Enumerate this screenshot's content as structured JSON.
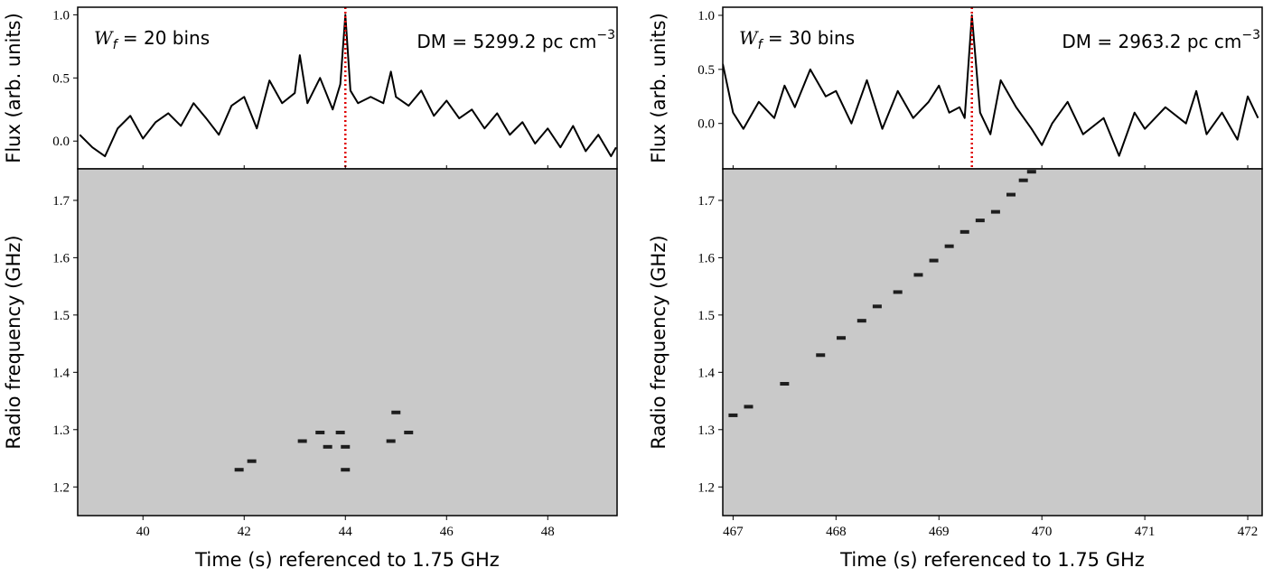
{
  "chart_data": [
    {
      "type": "line",
      "ylabel": "Flux (arb. units)",
      "color": "#000000",
      "x": [
        38.75,
        39.0,
        39.25,
        39.5,
        39.75,
        40.0,
        40.25,
        40.5,
        40.75,
        41.0,
        41.25,
        41.5,
        41.75,
        42.0,
        42.25,
        42.5,
        42.75,
        43.0,
        43.1,
        43.25,
        43.5,
        43.75,
        43.9,
        44.0,
        44.1,
        44.25,
        44.5,
        44.75,
        44.9,
        45.0,
        45.25,
        45.5,
        45.75,
        46.0,
        46.25,
        46.5,
        46.75,
        47.0,
        47.25,
        47.5,
        47.75,
        48.0,
        48.25,
        48.5,
        48.75,
        49.0,
        49.25,
        49.35
      ],
      "values": [
        0.05,
        -0.05,
        -0.12,
        0.1,
        0.2,
        0.02,
        0.15,
        0.22,
        0.12,
        0.3,
        0.18,
        0.05,
        0.28,
        0.35,
        0.1,
        0.48,
        0.3,
        0.38,
        0.68,
        0.3,
        0.5,
        0.25,
        0.45,
        1.0,
        0.4,
        0.3,
        0.35,
        0.3,
        0.55,
        0.35,
        0.28,
        0.4,
        0.2,
        0.32,
        0.18,
        0.25,
        0.1,
        0.22,
        0.05,
        0.15,
        -0.02,
        0.1,
        -0.05,
        0.12,
        -0.08,
        0.05,
        -0.12,
        -0.05
      ],
      "xlim": [
        38.71,
        49.37
      ],
      "ylim": [
        -0.22,
        1.06
      ],
      "yticks": [
        {
          "value": 0,
          "label": "0.0"
        },
        0.5,
        {
          "value": 1,
          "label": "1.0"
        }
      ],
      "vline": 44.0,
      "vline_color": "#e00000",
      "width_symbol": "W",
      "width_subscript": "f",
      "width_text": " = 20 bins",
      "dm_label": "DM = 5299.2 pc cm",
      "dm_exponent": "−3"
    },
    {
      "type": "scatter",
      "ylabel": "Radio frequency (GHz)",
      "xlabel": "Time (s) referenced to 1.75 GHz",
      "color": "#000000",
      "background": "#c9c9c9",
      "x": [
        41.9,
        42.15,
        43.15,
        43.5,
        43.65,
        43.9,
        44.0,
        44.0,
        44.9,
        45.0,
        45.25
      ],
      "values": [
        1.23,
        1.245,
        1.28,
        1.295,
        1.27,
        1.295,
        1.27,
        1.23,
        1.28,
        1.33,
        1.295
      ],
      "xlim": [
        38.71,
        49.37
      ],
      "ylim": [
        1.15,
        1.755
      ],
      "xticks": [
        40,
        42,
        44,
        46,
        48
      ],
      "yticks": [
        1.2,
        1.3,
        1.4,
        1.5,
        1.6,
        1.7
      ]
    },
    {
      "type": "line",
      "ylabel": "Flux (arb. units)",
      "color": "#000000",
      "x": [
        466.9,
        467.0,
        467.1,
        467.25,
        467.4,
        467.5,
        467.6,
        467.75,
        467.9,
        468.0,
        468.15,
        468.3,
        468.45,
        468.6,
        468.75,
        468.9,
        469.0,
        469.1,
        469.2,
        469.25,
        469.32,
        469.4,
        469.5,
        469.6,
        469.75,
        469.9,
        470.0,
        470.1,
        470.25,
        470.4,
        470.6,
        470.75,
        470.9,
        471.0,
        471.2,
        471.4,
        471.5,
        471.6,
        471.75,
        471.9,
        472.0,
        472.1
      ],
      "values": [
        0.55,
        0.1,
        -0.05,
        0.2,
        0.05,
        0.35,
        0.15,
        0.5,
        0.25,
        0.3,
        0.0,
        0.4,
        -0.05,
        0.3,
        0.05,
        0.2,
        0.35,
        0.1,
        0.15,
        0.05,
        1.0,
        0.1,
        -0.1,
        0.4,
        0.15,
        -0.05,
        -0.2,
        0.0,
        0.2,
        -0.1,
        0.05,
        -0.3,
        0.1,
        -0.05,
        0.15,
        0.0,
        0.3,
        -0.1,
        0.1,
        -0.15,
        0.25,
        0.05
      ],
      "xlim": [
        466.9,
        472.14
      ],
      "ylim": [
        -0.42,
        1.075
      ],
      "yticks": [
        {
          "value": 0,
          "label": "0.0"
        },
        0.5,
        {
          "value": 1,
          "label": "1.0"
        }
      ],
      "vline": 469.32,
      "vline_color": "#e00000",
      "width_symbol": "W",
      "width_subscript": "f",
      "width_text": " = 30 bins",
      "dm_label": "DM = 2963.2 pc cm",
      "dm_exponent": "−3"
    },
    {
      "type": "scatter",
      "ylabel": "Radio frequency (GHz)",
      "xlabel": "Time (s) referenced to 1.75 GHz",
      "color": "#000000",
      "background": "#c9c9c9",
      "x": [
        467.0,
        467.15,
        467.5,
        467.85,
        468.05,
        468.25,
        468.4,
        468.6,
        468.8,
        468.95,
        469.1,
        469.25,
        469.4,
        469.55,
        469.7,
        469.82,
        469.9
      ],
      "values": [
        1.325,
        1.34,
        1.38,
        1.43,
        1.46,
        1.49,
        1.515,
        1.54,
        1.57,
        1.595,
        1.62,
        1.645,
        1.665,
        1.68,
        1.71,
        1.735,
        1.75
      ],
      "xlim": [
        466.9,
        472.14
      ],
      "ylim": [
        1.15,
        1.755
      ],
      "xticks": [
        467,
        468,
        469,
        470,
        471,
        472
      ],
      "yticks": [
        1.2,
        1.3,
        1.4,
        1.5,
        1.6,
        1.7
      ]
    }
  ]
}
